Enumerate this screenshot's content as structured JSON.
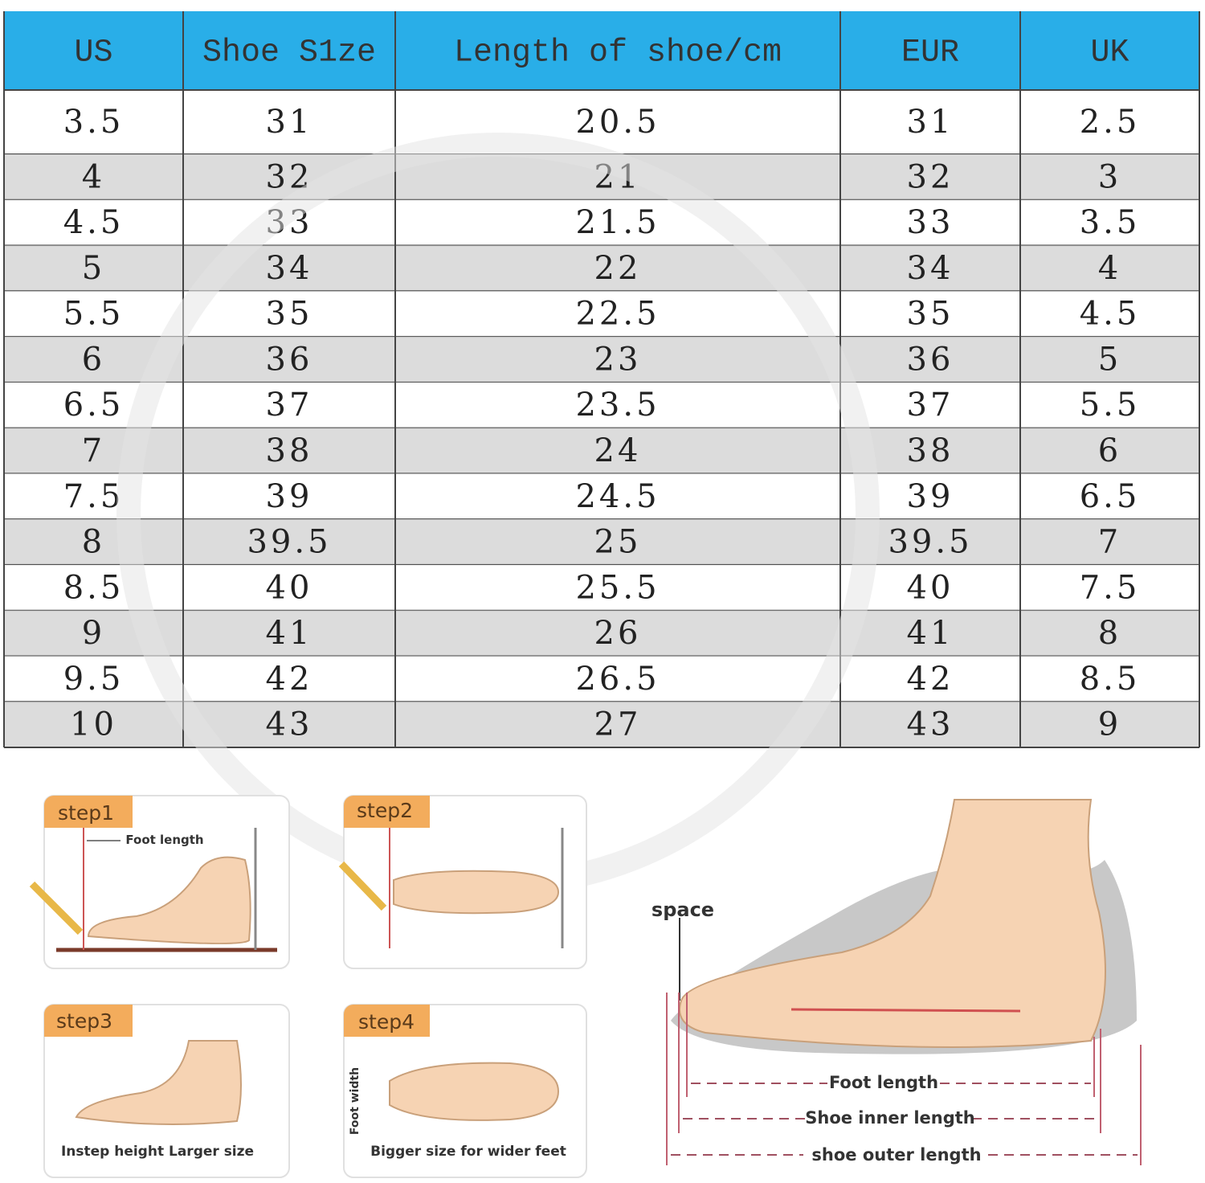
{
  "table": {
    "header": [
      "US",
      "Shoe S1ze",
      "Length of shoe/cm",
      "EUR",
      "UK"
    ],
    "rows": [
      [
        3.5,
        31,
        20.5,
        31,
        2.5
      ],
      [
        4,
        32,
        21,
        32,
        3
      ],
      [
        4.5,
        33,
        21.5,
        33,
        3.5
      ],
      [
        5,
        34,
        22,
        34,
        4
      ],
      [
        5.5,
        35,
        22.5,
        35,
        4.5
      ],
      [
        6,
        36,
        23,
        36,
        5
      ],
      [
        6.5,
        37,
        23.5,
        37,
        5.5
      ],
      [
        7,
        38,
        24,
        38,
        6
      ],
      [
        7.5,
        39,
        24.5,
        39,
        6.5
      ],
      [
        8,
        39.5,
        25,
        39.5,
        7
      ],
      [
        8.5,
        40,
        25.5,
        40,
        7.5
      ],
      [
        9,
        41,
        26,
        41,
        8
      ],
      [
        9.5,
        42,
        26.5,
        42,
        8.5
      ],
      [
        10,
        43,
        27,
        43,
        9
      ]
    ]
  },
  "steps": [
    {
      "label": "step1",
      "note": "Foot length"
    },
    {
      "label": "step2"
    },
    {
      "label": "step3",
      "caption": "Instep height Larger size"
    },
    {
      "label": "step4",
      "note": "Foot width",
      "caption": "Bigger size for wider feet"
    }
  ],
  "diagram": {
    "space": "space",
    "foot_length": "Foot length",
    "inner_length": "Shoe inner length",
    "outer_length": "shoe outer length"
  }
}
